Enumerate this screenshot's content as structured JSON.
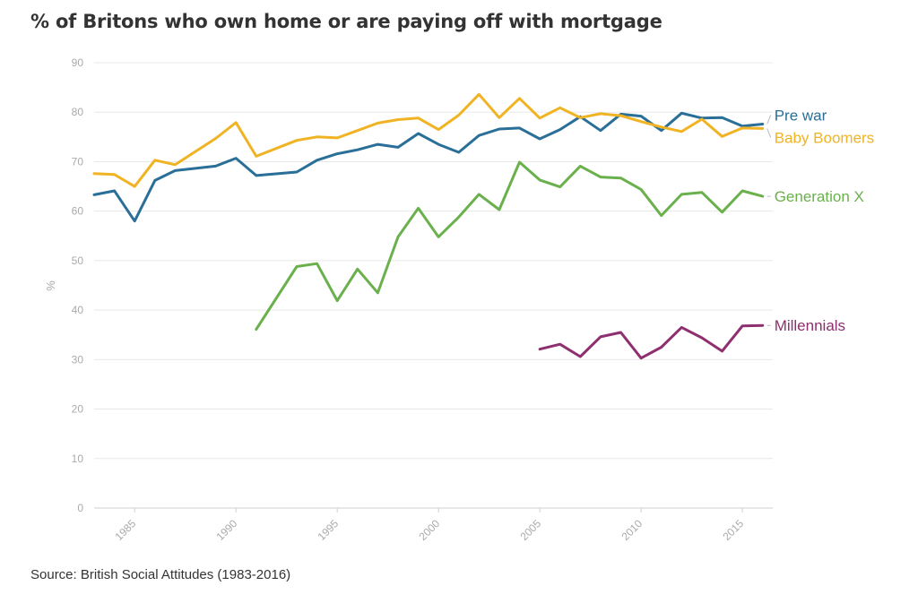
{
  "title": "% of Britons who own home or are paying off with mortgage",
  "source": "Source: British Social Attitudes (1983-2016)",
  "chart_data": {
    "type": "line",
    "title": "% of Britons who own home or are paying off with mortgage",
    "ylabel": "%",
    "xlabel": "",
    "ylim": [
      0,
      90
    ],
    "xlim": [
      1983,
      2016.5
    ],
    "y_ticks": [
      0,
      10,
      20,
      30,
      40,
      50,
      60,
      70,
      80,
      90
    ],
    "x_ticks": [
      1985,
      1990,
      1995,
      2000,
      2005,
      2010,
      2015
    ],
    "grid": "horizontal",
    "legend": "direct labels at line ends (right)",
    "series": [
      {
        "name": "Pre war",
        "color": "#2a6f97",
        "x": [
          1983,
          1984,
          1985,
          1986,
          1987,
          1989,
          1990,
          1991,
          1993,
          1994,
          1995,
          1996,
          1997,
          1998,
          1999,
          2000,
          2001,
          2002,
          2003,
          2004,
          2005,
          2006,
          2007,
          2008,
          2009,
          2010,
          2011,
          2012,
          2013,
          2014,
          2015,
          2016
        ],
        "values": [
          63.3,
          64.1,
          58,
          66.2,
          68.2,
          69.1,
          70.7,
          67.2,
          67.9,
          70.3,
          71.6,
          72.4,
          73.5,
          72.9,
          75.7,
          73.5,
          71.9,
          75.3,
          76.6,
          76.8,
          74.6,
          76.5,
          79.1,
          76.3,
          79.6,
          79.2,
          76.3,
          79.8,
          78.8,
          78.9,
          77.2,
          77.6
        ]
      },
      {
        "name": "Baby Boomers",
        "color": "#f0b323",
        "x": [
          1983,
          1984,
          1985,
          1986,
          1987,
          1989,
          1990,
          1991,
          1993,
          1994,
          1995,
          1996,
          1997,
          1998,
          1999,
          2000,
          2001,
          2002,
          2003,
          2004,
          2005,
          2006,
          2007,
          2008,
          2009,
          2010,
          2011,
          2012,
          2013,
          2014,
          2015,
          2016
        ],
        "values": [
          67.6,
          67.4,
          65,
          70.3,
          69.4,
          74.7,
          77.9,
          71.1,
          74.3,
          75,
          74.8,
          76.3,
          77.8,
          78.5,
          78.8,
          76.5,
          79.4,
          83.6,
          78.9,
          82.8,
          78.8,
          80.9,
          78.9,
          79.7,
          79.3,
          78.1,
          77,
          76.1,
          78.6,
          75.1,
          76.8,
          76.7
        ]
      },
      {
        "name": "Generation X",
        "color": "#6ab04c",
        "x": [
          1991,
          1993,
          1994,
          1995,
          1996,
          1997,
          1998,
          1999,
          2000,
          2001,
          2002,
          2003,
          2004,
          2005,
          2006,
          2007,
          2008,
          2009,
          2010,
          2011,
          2012,
          2013,
          2014,
          2015,
          2016
        ],
        "values": [
          36.1,
          48.8,
          49.4,
          41.9,
          48.3,
          43.5,
          54.8,
          60.6,
          54.8,
          58.8,
          63.4,
          60.3,
          69.9,
          66.3,
          64.9,
          69.1,
          66.9,
          66.7,
          64.4,
          59.1,
          63.4,
          63.8,
          59.8,
          64.1,
          63
        ]
      },
      {
        "name": "Millennials",
        "color": "#8e2f6f",
        "x": [
          2005,
          2006,
          2007,
          2008,
          2009,
          2010,
          2011,
          2012,
          2013,
          2014,
          2015,
          2016
        ],
        "values": [
          32.1,
          33.1,
          30.6,
          34.6,
          35.5,
          30.3,
          32.5,
          36.5,
          34.4,
          31.7,
          36.8,
          36.9
        ]
      }
    ]
  }
}
